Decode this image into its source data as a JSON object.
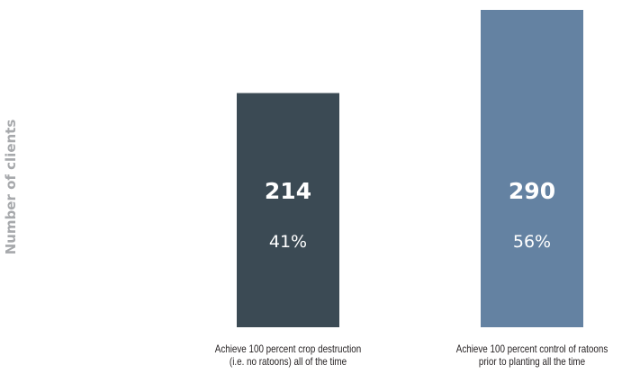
{
  "chart_data": {
    "type": "bar",
    "ylabel": "Number of clients",
    "categories": [
      [
        "Achieve 100 percent crop destruction",
        "(i.e. no ratoons) all of the time"
      ],
      [
        "Achieve 100 percent control of ratoons",
        "prior to planting all the time"
      ]
    ],
    "values": [
      214,
      290
    ],
    "value_labels": [
      "214",
      "290"
    ],
    "percent_labels": [
      "41%",
      "56%"
    ],
    "colors": [
      "#3b4a54",
      "#6482a2"
    ],
    "grid": false,
    "legend": "none"
  }
}
